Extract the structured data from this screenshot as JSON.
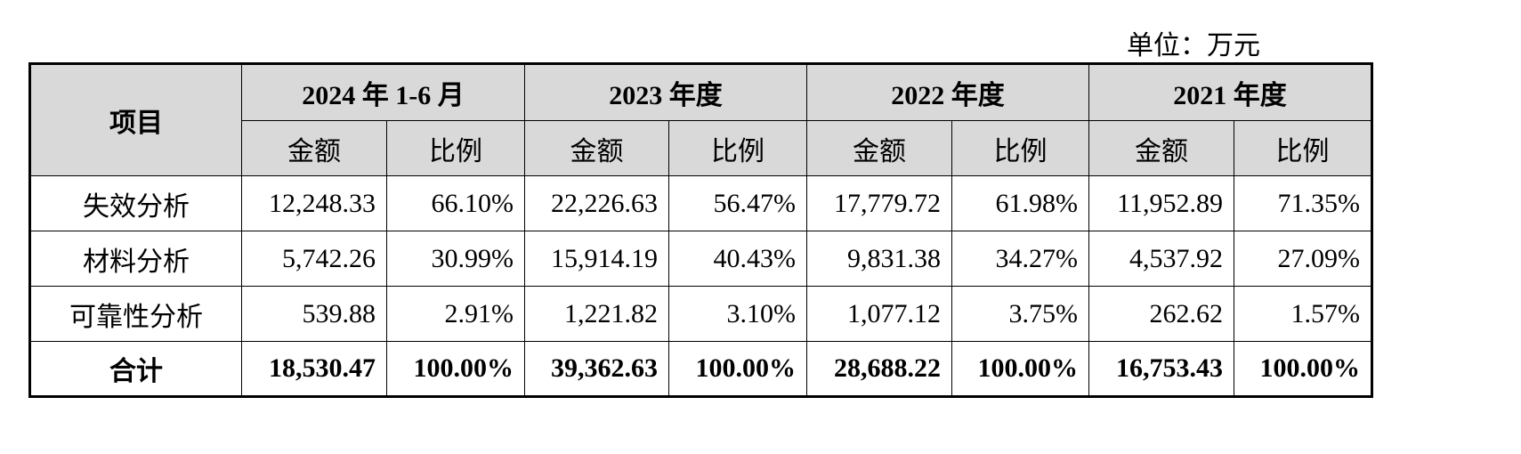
{
  "unit": "单位：万元",
  "table": {
    "item_header": "项目",
    "periods": [
      {
        "title": "2024 年 1-6 月",
        "amount_label": "金额",
        "ratio_label": "比例"
      },
      {
        "title": "2023 年度",
        "amount_label": "金额",
        "ratio_label": "比例"
      },
      {
        "title": "2022 年度",
        "amount_label": "金额",
        "ratio_label": "比例"
      },
      {
        "title": "2021 年度",
        "amount_label": "金额",
        "ratio_label": "比例"
      }
    ],
    "rows": [
      {
        "label": "失效分析",
        "cells": [
          "12,248.33",
          "66.10%",
          "22,226.63",
          "56.47%",
          "17,779.72",
          "61.98%",
          "11,952.89",
          "71.35%"
        ]
      },
      {
        "label": "材料分析",
        "cells": [
          "5,742.26",
          "30.99%",
          "15,914.19",
          "40.43%",
          "9,831.38",
          "34.27%",
          "4,537.92",
          "27.09%"
        ]
      },
      {
        "label": "可靠性分析",
        "cells": [
          "539.88",
          "2.91%",
          "1,221.82",
          "3.10%",
          "1,077.12",
          "3.75%",
          "262.62",
          "1.57%"
        ]
      }
    ],
    "total": {
      "label": "合计",
      "cells": [
        "18,530.47",
        "100.00%",
        "39,362.63",
        "100.00%",
        "28,688.22",
        "100.00%",
        "16,753.43",
        "100.00%"
      ]
    }
  }
}
